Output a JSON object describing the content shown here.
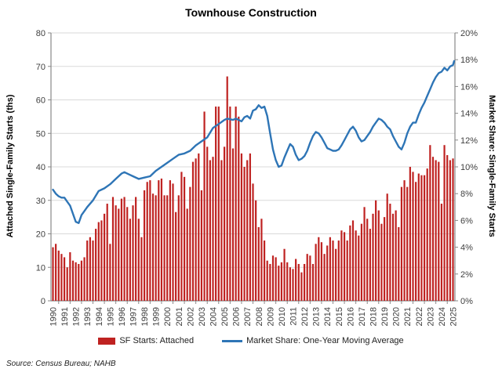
{
  "title": "Townhouse Construction",
  "source": "Source: Census Bureau; NAHB",
  "colors": {
    "bar": "#BF2221",
    "line": "#2E75B6",
    "gridline": "#D9D9D9",
    "axis_line": "#898989",
    "tick_label": "#404040"
  },
  "left_axis": {
    "title": "Attached Single-Family Starts (ths)",
    "min": 0,
    "max": 80,
    "step": 10
  },
  "right_axis": {
    "title": "Market Share: Single-Family Starts",
    "min": 0,
    "max": 20,
    "step": 2,
    "suffix": "%"
  },
  "x_axis": {
    "first_year": 1990,
    "last_year": 2025
  },
  "legend": [
    {
      "label": "SF Starts: Attached",
      "type": "bar"
    },
    {
      "label": "Market Share: One-Year Moving Average",
      "type": "line"
    }
  ],
  "chart_data": {
    "type": "combo",
    "title": "Townhouse Construction",
    "ylabel_left": "Attached Single-Family Starts (ths)",
    "ylabel_right": "Market Share: Single-Family Starts",
    "ylim_left": [
      0,
      80
    ],
    "ylim_right_pct": [
      0,
      20
    ],
    "grid": "horizontal",
    "legend_position": "bottom",
    "bar_series": {
      "name": "SF Starts: Attached",
      "unit": "thousands of starts",
      "frequency": "quarterly",
      "start_year": 1990,
      "values": [
        16,
        17,
        15,
        14,
        13,
        10,
        14.5,
        12,
        11.5,
        11,
        12,
        13,
        18,
        19,
        18,
        21.5,
        23.5,
        24,
        26,
        29,
        17,
        31,
        28.5,
        27.5,
        30.5,
        31,
        28,
        24.5,
        28.5,
        31,
        24.5,
        19,
        33,
        35.5,
        36,
        32,
        31.5,
        36,
        36.5,
        31.5,
        31.5,
        36,
        35,
        26.5,
        31.5,
        38.5,
        37,
        27.5,
        34,
        41.5,
        42.5,
        44,
        33,
        56.5,
        46,
        42,
        43,
        58,
        58,
        42,
        46,
        67,
        58,
        45.5,
        58,
        55,
        44,
        40,
        42,
        44,
        35,
        30,
        22,
        24.5,
        18,
        12,
        11,
        13.5,
        13,
        10.5,
        11.5,
        15.5,
        11.5,
        10,
        9.5,
        12.5,
        11,
        8.5,
        11,
        14,
        13.5,
        11,
        17,
        19,
        17.5,
        14,
        16.5,
        19,
        18,
        15.5,
        18,
        21,
        20.5,
        18,
        22.5,
        24,
        21,
        19.5,
        23,
        28,
        24.5,
        21.5,
        26,
        30,
        27,
        23,
        25,
        32,
        29,
        26,
        27,
        22,
        34,
        36,
        34,
        40,
        38.5,
        35.5,
        38,
        37.5,
        37.5,
        39.5,
        46.5,
        43,
        42,
        41.5,
        29,
        46.5,
        43.5,
        42,
        42.5
      ]
    },
    "line_series": {
      "name": "Market Share: One-Year Moving Average",
      "unit": "percent",
      "points": [
        [
          1990.0,
          8.3
        ],
        [
          1990.25,
          8.0
        ],
        [
          1990.5,
          7.8
        ],
        [
          1990.75,
          7.7
        ],
        [
          1991.0,
          7.7
        ],
        [
          1991.25,
          7.4
        ],
        [
          1991.5,
          7.1
        ],
        [
          1991.75,
          6.5
        ],
        [
          1992.0,
          5.9
        ],
        [
          1992.25,
          5.8
        ],
        [
          1992.5,
          6.4
        ],
        [
          1992.75,
          6.7
        ],
        [
          1993.0,
          7.0
        ],
        [
          1993.5,
          7.5
        ],
        [
          1994.0,
          8.2
        ],
        [
          1994.5,
          8.4
        ],
        [
          1995.0,
          8.7
        ],
        [
          1995.5,
          9.1
        ],
        [
          1996.0,
          9.5
        ],
        [
          1996.25,
          9.6
        ],
        [
          1996.75,
          9.4
        ],
        [
          1997.0,
          9.3
        ],
        [
          1997.5,
          9.1
        ],
        [
          1998.0,
          9.2
        ],
        [
          1998.5,
          9.3
        ],
        [
          1999.0,
          9.7
        ],
        [
          1999.5,
          10.0
        ],
        [
          2000.0,
          10.3
        ],
        [
          2000.5,
          10.6
        ],
        [
          2001.0,
          10.9
        ],
        [
          2001.5,
          11.0
        ],
        [
          2002.0,
          11.2
        ],
        [
          2002.5,
          11.6
        ],
        [
          2003.0,
          11.9
        ],
        [
          2003.5,
          12.2
        ],
        [
          2004.0,
          12.9
        ],
        [
          2004.5,
          13.2
        ],
        [
          2005.0,
          13.5
        ],
        [
          2005.25,
          13.6
        ],
        [
          2005.75,
          13.5
        ],
        [
          2006.0,
          13.6
        ],
        [
          2006.25,
          13.5
        ],
        [
          2006.5,
          13.4
        ],
        [
          2006.75,
          13.7
        ],
        [
          2007.0,
          13.8
        ],
        [
          2007.25,
          13.6
        ],
        [
          2007.5,
          14.2
        ],
        [
          2007.75,
          14.3
        ],
        [
          2008.0,
          14.6
        ],
        [
          2008.25,
          14.4
        ],
        [
          2008.5,
          14.5
        ],
        [
          2008.75,
          13.8
        ],
        [
          2009.0,
          12.5
        ],
        [
          2009.25,
          11.3
        ],
        [
          2009.5,
          10.5
        ],
        [
          2009.75,
          10.0
        ],
        [
          2010.0,
          10.1
        ],
        [
          2010.25,
          10.7
        ],
        [
          2010.5,
          11.2
        ],
        [
          2010.75,
          11.7
        ],
        [
          2011.0,
          11.5
        ],
        [
          2011.25,
          10.9
        ],
        [
          2011.5,
          10.5
        ],
        [
          2011.75,
          10.6
        ],
        [
          2012.0,
          10.8
        ],
        [
          2012.25,
          11.2
        ],
        [
          2012.5,
          11.8
        ],
        [
          2012.75,
          12.3
        ],
        [
          2013.0,
          12.6
        ],
        [
          2013.25,
          12.5
        ],
        [
          2013.5,
          12.2
        ],
        [
          2013.75,
          11.8
        ],
        [
          2014.0,
          11.4
        ],
        [
          2014.25,
          11.3
        ],
        [
          2014.5,
          11.2
        ],
        [
          2014.75,
          11.2
        ],
        [
          2015.0,
          11.3
        ],
        [
          2015.25,
          11.6
        ],
        [
          2015.5,
          12.0
        ],
        [
          2015.75,
          12.4
        ],
        [
          2016.0,
          12.8
        ],
        [
          2016.25,
          13.0
        ],
        [
          2016.5,
          12.7
        ],
        [
          2016.75,
          12.2
        ],
        [
          2017.0,
          11.9
        ],
        [
          2017.25,
          12.0
        ],
        [
          2017.5,
          12.3
        ],
        [
          2017.75,
          12.6
        ],
        [
          2018.0,
          13.0
        ],
        [
          2018.25,
          13.3
        ],
        [
          2018.5,
          13.6
        ],
        [
          2018.75,
          13.5
        ],
        [
          2019.0,
          13.3
        ],
        [
          2019.25,
          13.0
        ],
        [
          2019.5,
          12.8
        ],
        [
          2019.75,
          12.3
        ],
        [
          2020.0,
          11.9
        ],
        [
          2020.25,
          11.5
        ],
        [
          2020.5,
          11.3
        ],
        [
          2020.75,
          11.8
        ],
        [
          2021.0,
          12.5
        ],
        [
          2021.25,
          13.0
        ],
        [
          2021.5,
          13.3
        ],
        [
          2021.75,
          13.3
        ],
        [
          2022.0,
          13.9
        ],
        [
          2022.25,
          14.4
        ],
        [
          2022.5,
          14.8
        ],
        [
          2022.75,
          15.3
        ],
        [
          2023.0,
          15.8
        ],
        [
          2023.25,
          16.3
        ],
        [
          2023.5,
          16.7
        ],
        [
          2023.75,
          17.0
        ],
        [
          2024.0,
          17.1
        ],
        [
          2024.25,
          17.4
        ],
        [
          2024.5,
          17.2
        ],
        [
          2024.75,
          17.5
        ],
        [
          2025.0,
          17.6
        ],
        [
          2025.1,
          17.9
        ]
      ]
    }
  }
}
